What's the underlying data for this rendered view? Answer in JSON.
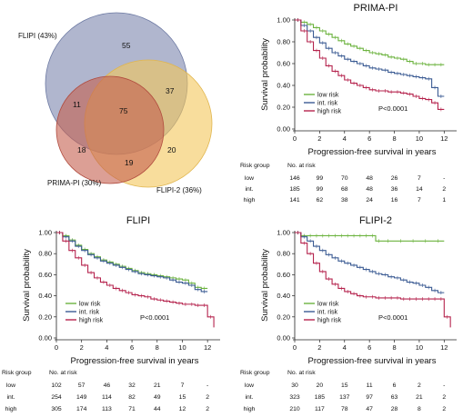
{
  "venn": {
    "sets": [
      {
        "label": "FLIPI (43%)",
        "color": "#6e7fa8"
      },
      {
        "label": "PRIMA-PI (30%)",
        "color": "#c25b4d"
      },
      {
        "label": "FLIPI-2 (36%)",
        "color": "#f2c757"
      }
    ],
    "regions": {
      "flipi_only": "55",
      "flipi2_only": "20",
      "prima_only": "18",
      "flipi_flipi2": "37",
      "flipi_prima": "11",
      "prima_flipi2": "19",
      "all_three": "75"
    }
  },
  "chart_data": [
    {
      "id": "prima",
      "type": "line",
      "title": "PRIMA-PI",
      "xlabel": "Progression-free survival in years",
      "ylabel": "Survival probability",
      "xlim": [
        0,
        13
      ],
      "ylim": [
        0,
        1
      ],
      "xticks": [
        0,
        2,
        4,
        6,
        8,
        10,
        12
      ],
      "yticks": [
        "0.00",
        "0.20",
        "0.40",
        "0.60",
        "0.80",
        "1.00"
      ],
      "pvalue": "P<0.0001",
      "legend_position": "bottom-left",
      "series": [
        {
          "name": "low risk",
          "color": "#6cb33f",
          "x": [
            0,
            0.5,
            1,
            1.5,
            2,
            2.5,
            3,
            3.5,
            4,
            4.5,
            5,
            5.5,
            6,
            6.5,
            7,
            7.5,
            8,
            8.5,
            9,
            9.5,
            10,
            10.5,
            11,
            11.5,
            12
          ],
          "y": [
            1,
            0.98,
            0.96,
            0.93,
            0.9,
            0.87,
            0.84,
            0.81,
            0.78,
            0.76,
            0.74,
            0.72,
            0.7,
            0.69,
            0.68,
            0.66,
            0.65,
            0.64,
            0.62,
            0.6,
            0.6,
            0.59,
            0.59,
            0.59,
            0.59
          ]
        },
        {
          "name": "int. risk",
          "color": "#3b5b93",
          "x": [
            0,
            0.5,
            1,
            1.5,
            2,
            2.5,
            3,
            3.5,
            4,
            4.5,
            5,
            5.5,
            6,
            6.5,
            7,
            7.5,
            8,
            8.5,
            9,
            9.5,
            10,
            10.5,
            11,
            11.5,
            12
          ],
          "y": [
            1,
            0.95,
            0.9,
            0.84,
            0.79,
            0.74,
            0.7,
            0.67,
            0.64,
            0.62,
            0.6,
            0.58,
            0.56,
            0.55,
            0.54,
            0.52,
            0.51,
            0.5,
            0.49,
            0.48,
            0.47,
            0.46,
            0.38,
            0.3,
            0.3
          ]
        },
        {
          "name": "high risk",
          "color": "#b5234d",
          "x": [
            0,
            0.5,
            1,
            1.5,
            2,
            2.5,
            3,
            3.5,
            4,
            4.5,
            5,
            5.5,
            6,
            6.5,
            7,
            7.5,
            8,
            8.5,
            9,
            9.5,
            10,
            10.5,
            11,
            11.5,
            12
          ],
          "y": [
            1,
            0.9,
            0.8,
            0.72,
            0.65,
            0.58,
            0.53,
            0.49,
            0.45,
            0.42,
            0.4,
            0.38,
            0.36,
            0.35,
            0.35,
            0.34,
            0.34,
            0.33,
            0.32,
            0.3,
            0.28,
            0.27,
            0.24,
            0.18,
            0.18
          ]
        }
      ],
      "risk_table": {
        "header": [
          "Risk group",
          "No. at risk"
        ],
        "rows": [
          {
            "group": "low",
            "values": [
              "146",
              "99",
              "70",
              "48",
              "26",
              "7",
              "-"
            ]
          },
          {
            "group": "int.",
            "values": [
              "185",
              "99",
              "68",
              "48",
              "36",
              "14",
              "2"
            ]
          },
          {
            "group": "high",
            "values": [
              "141",
              "62",
              "38",
              "24",
              "16",
              "7",
              "1"
            ]
          }
        ]
      }
    },
    {
      "id": "flipi",
      "type": "line",
      "title": "FLIPI",
      "xlabel": "Progression-free survival in years",
      "ylabel": "Survival probability",
      "xlim": [
        0,
        13
      ],
      "ylim": [
        0,
        1
      ],
      "xticks": [
        0,
        2,
        4,
        6,
        8,
        10,
        12
      ],
      "yticks": [
        "0.00",
        "0.20",
        "0.40",
        "0.60",
        "0.80",
        "1.00"
      ],
      "pvalue": "P<0.0001",
      "legend_position": "bottom-left",
      "series": [
        {
          "name": "low risk",
          "color": "#6cb33f",
          "x": [
            0,
            0.5,
            1,
            1.5,
            2,
            2.5,
            3,
            3.5,
            4,
            4.5,
            5,
            5.5,
            6,
            6.5,
            7,
            7.5,
            8,
            8.5,
            9,
            9.5,
            10,
            10.5,
            11,
            11.5,
            12
          ],
          "y": [
            1,
            0.97,
            0.93,
            0.88,
            0.84,
            0.8,
            0.77,
            0.74,
            0.72,
            0.7,
            0.68,
            0.66,
            0.64,
            0.62,
            0.61,
            0.6,
            0.59,
            0.58,
            0.57,
            0.56,
            0.55,
            0.52,
            0.48,
            0.47,
            0.47
          ]
        },
        {
          "name": "int. risk",
          "color": "#3b5b93",
          "x": [
            0,
            0.5,
            1,
            1.5,
            2,
            2.5,
            3,
            3.5,
            4,
            4.5,
            5,
            5.5,
            6,
            6.5,
            7,
            7.5,
            8,
            8.5,
            9,
            9.5,
            10,
            10.5,
            11,
            11.5,
            12
          ],
          "y": [
            1,
            0.96,
            0.92,
            0.87,
            0.83,
            0.79,
            0.76,
            0.73,
            0.71,
            0.69,
            0.67,
            0.65,
            0.63,
            0.61,
            0.6,
            0.59,
            0.58,
            0.57,
            0.55,
            0.53,
            0.52,
            0.5,
            0.46,
            0.44,
            0.44
          ]
        },
        {
          "name": "high risk",
          "color": "#b5234d",
          "x": [
            0,
            0.5,
            1,
            1.5,
            2,
            2.5,
            3,
            3.5,
            4,
            4.5,
            5,
            5.5,
            6,
            6.5,
            7,
            7.5,
            8,
            8.5,
            9,
            9.5,
            10,
            10.5,
            11,
            11.5,
            12,
            12.5
          ],
          "y": [
            1,
            0.92,
            0.83,
            0.76,
            0.69,
            0.62,
            0.57,
            0.53,
            0.5,
            0.47,
            0.45,
            0.43,
            0.41,
            0.4,
            0.39,
            0.37,
            0.36,
            0.35,
            0.34,
            0.33,
            0.32,
            0.32,
            0.31,
            0.31,
            0.2,
            0.1
          ]
        }
      ],
      "risk_table": {
        "header": [
          "Risk group",
          "No. at risk"
        ],
        "rows": [
          {
            "group": "low",
            "values": [
              "102",
              "57",
              "46",
              "32",
              "21",
              "7",
              "-"
            ]
          },
          {
            "group": "int.",
            "values": [
              "254",
              "149",
              "114",
              "82",
              "49",
              "15",
              "2"
            ]
          },
          {
            "group": "high",
            "values": [
              "305",
              "174",
              "113",
              "71",
              "44",
              "12",
              "2"
            ]
          }
        ]
      }
    },
    {
      "id": "flipi2",
      "type": "line",
      "title": "FLIPI-2",
      "xlabel": "Progression-free survival in years",
      "ylabel": "Survival probability",
      "xlim": [
        0,
        13
      ],
      "ylim": [
        0,
        1
      ],
      "xticks": [
        0,
        2,
        4,
        6,
        8,
        10,
        12
      ],
      "yticks": [
        "0.00",
        "0.20",
        "0.40",
        "0.60",
        "0.80",
        "1.00"
      ],
      "pvalue": "P<0.0001",
      "legend_position": "bottom-left",
      "series": [
        {
          "name": "low risk",
          "color": "#6cb33f",
          "x": [
            0,
            0.5,
            1,
            1.5,
            2,
            2.5,
            3,
            3.5,
            4,
            4.5,
            5,
            5.5,
            6,
            6.5,
            7,
            8,
            9,
            10,
            11,
            12
          ],
          "y": [
            1,
            0.97,
            0.97,
            0.97,
            0.97,
            0.97,
            0.97,
            0.97,
            0.97,
            0.97,
            0.97,
            0.97,
            0.97,
            0.92,
            0.92,
            0.92,
            0.92,
            0.92,
            0.92,
            0.92
          ]
        },
        {
          "name": "int. risk",
          "color": "#3b5b93",
          "x": [
            0,
            0.5,
            1,
            1.5,
            2,
            2.5,
            3,
            3.5,
            4,
            4.5,
            5,
            5.5,
            6,
            6.5,
            7,
            7.5,
            8,
            8.5,
            9,
            9.5,
            10,
            10.5,
            11,
            11.5,
            12
          ],
          "y": [
            1,
            0.96,
            0.92,
            0.87,
            0.83,
            0.79,
            0.76,
            0.73,
            0.71,
            0.69,
            0.67,
            0.65,
            0.63,
            0.61,
            0.6,
            0.58,
            0.57,
            0.55,
            0.53,
            0.52,
            0.5,
            0.48,
            0.45,
            0.43,
            0.43
          ]
        },
        {
          "name": "high risk",
          "color": "#b5234d",
          "x": [
            0,
            0.5,
            1,
            1.5,
            2,
            2.5,
            3,
            3.5,
            4,
            4.5,
            5,
            5.5,
            6,
            6.5,
            7,
            7.5,
            8,
            8.5,
            9,
            9.5,
            10,
            10.5,
            11,
            11.5,
            12,
            12.5
          ],
          "y": [
            1,
            0.9,
            0.8,
            0.71,
            0.63,
            0.56,
            0.51,
            0.47,
            0.44,
            0.42,
            0.4,
            0.39,
            0.39,
            0.38,
            0.38,
            0.38,
            0.38,
            0.37,
            0.37,
            0.37,
            0.37,
            0.37,
            0.37,
            0.37,
            0.2,
            0.1
          ]
        }
      ],
      "risk_table": {
        "header": [
          "Risk group",
          "No. at risk"
        ],
        "rows": [
          {
            "group": "low",
            "values": [
              "30",
              "20",
              "15",
              "11",
              "6",
              "2",
              "-"
            ]
          },
          {
            "group": "int.",
            "values": [
              "323",
              "185",
              "137",
              "97",
              "63",
              "21",
              "2"
            ]
          },
          {
            "group": "high",
            "values": [
              "210",
              "117",
              "78",
              "47",
              "28",
              "8",
              "2"
            ]
          }
        ]
      }
    }
  ]
}
